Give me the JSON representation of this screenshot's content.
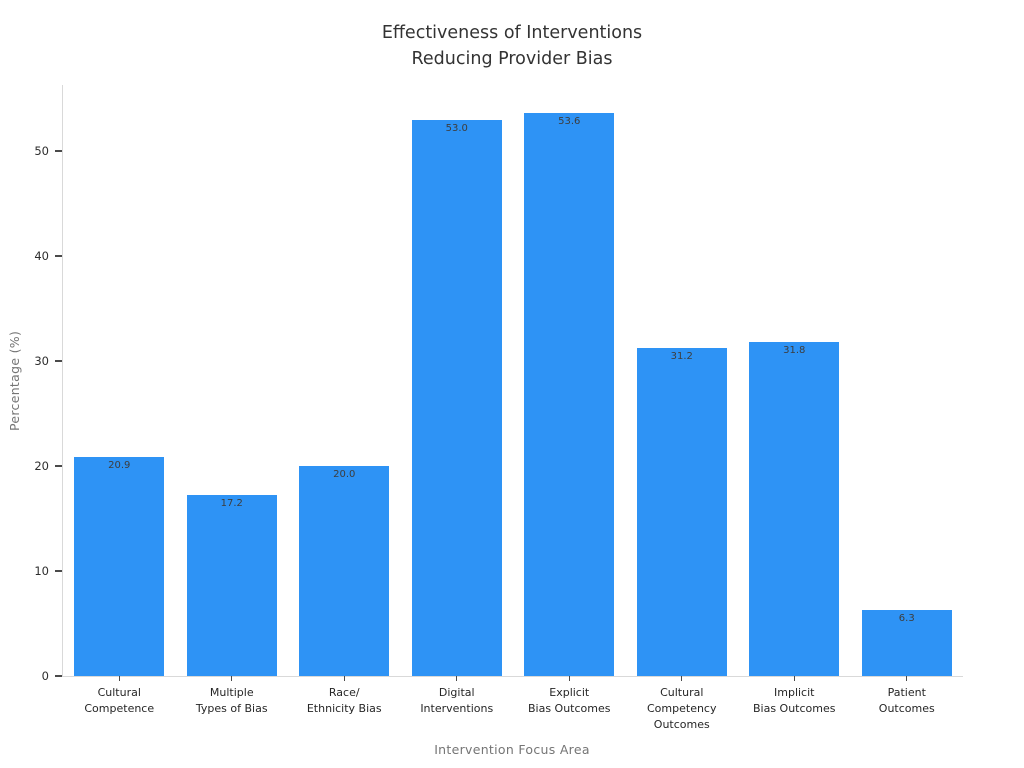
{
  "chart_data": {
    "type": "bar",
    "title_lines": [
      "Effectiveness of Interventions",
      "Reducing Provider Bias"
    ],
    "title": "Effectiveness of Interventions\nReducing Provider Bias",
    "xlabel": "Intervention Focus Area",
    "ylabel": "Percentage (%)",
    "categories": [
      "Cultural\nCompetence",
      "Multiple\nTypes of Bias",
      "Race/\nEthnicity Bias",
      "Digital\nInterventions",
      "Explicit\nBias Outcomes",
      "Cultural\nCompetency\nOutcomes",
      "Implicit\nBias Outcomes",
      "Patient\nOutcomes"
    ],
    "values": [
      20.9,
      17.2,
      20.0,
      53.0,
      53.6,
      31.2,
      31.8,
      6.3
    ],
    "value_labels": [
      "20.9",
      "17.2",
      "20.0",
      "53.0",
      "53.6",
      "31.2",
      "31.8",
      "6.3"
    ],
    "yticks": [
      0,
      10,
      20,
      30,
      40,
      50
    ],
    "ytick_labels": [
      "0",
      "10",
      "20",
      "30",
      "40",
      "50"
    ],
    "ylim": [
      0,
      56.3
    ],
    "grid": false,
    "legend": null,
    "colors": {
      "bar": "#2e93f5",
      "title_text": "#333333",
      "axis_title_text": "#757575",
      "tick_label_text": "#2e2e2e",
      "value_label_text": "#3d3d3d",
      "spine": "#d9d9d9",
      "tick_mark": "#4a4a4a",
      "background": "#ffffff"
    }
  }
}
